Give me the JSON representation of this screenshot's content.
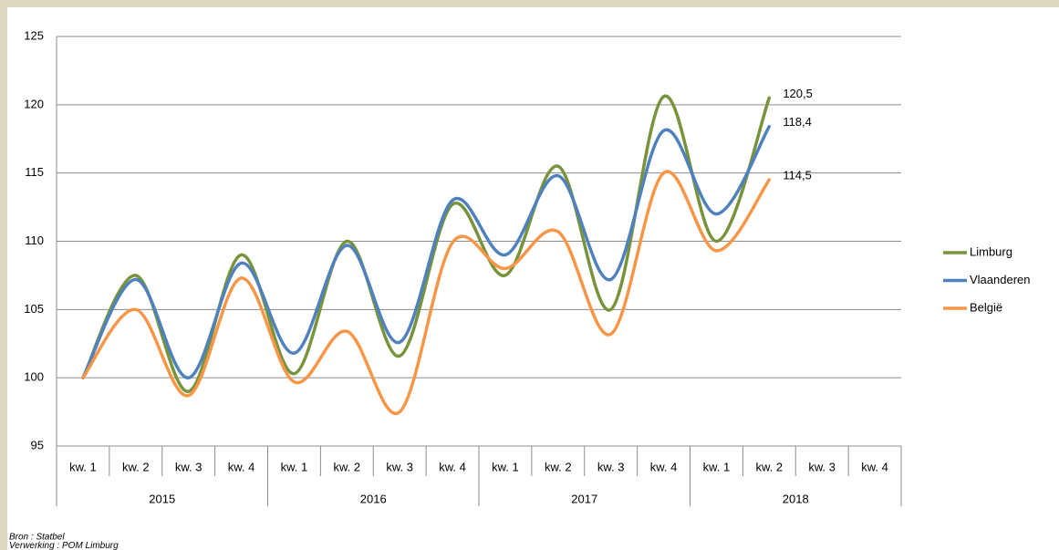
{
  "chart_data": {
    "type": "line",
    "categories": [
      "kw. 1",
      "kw. 2",
      "kw. 3",
      "kw. 4",
      "kw. 1",
      "kw. 2",
      "kw. 3",
      "kw. 4",
      "kw. 1",
      "kw. 2",
      "kw. 3",
      "kw. 4",
      "kw. 1",
      "kw. 2",
      "kw. 3",
      "kw. 4"
    ],
    "groups": [
      "2015",
      "2016",
      "2017",
      "2018"
    ],
    "series": [
      {
        "name": "Limburg",
        "color": "#77933c",
        "values": [
          100,
          107.5,
          99,
          109,
          100.3,
          110,
          101.6,
          112.7,
          107.5,
          115.5,
          105,
          120.6,
          110,
          120.5,
          null,
          null
        ],
        "value_labels": [
          null,
          null,
          null,
          null,
          null,
          null,
          null,
          null,
          null,
          null,
          null,
          null,
          null,
          "120,5",
          null,
          null
        ]
      },
      {
        "name": "Vlaanderen",
        "color": "#4f81bd",
        "values": [
          100,
          107.2,
          100,
          108.4,
          101.8,
          109.7,
          102.6,
          113,
          109,
          114.8,
          107.2,
          118.1,
          112,
          118.4,
          null,
          null
        ],
        "value_labels": [
          null,
          null,
          null,
          null,
          null,
          null,
          null,
          null,
          null,
          null,
          null,
          null,
          null,
          "118,4",
          null,
          null
        ]
      },
      {
        "name": "België",
        "color": "#f79646",
        "values": [
          100,
          105,
          98.7,
          107.3,
          99.7,
          103.4,
          97.5,
          109.9,
          108,
          110.7,
          103.2,
          115,
          109.3,
          114.5,
          null,
          null
        ],
        "value_labels": [
          null,
          null,
          null,
          null,
          null,
          null,
          null,
          null,
          null,
          null,
          null,
          null,
          null,
          "114,5",
          null,
          null
        ]
      }
    ],
    "ylim": [
      95,
      125
    ],
    "yticks": [
      95,
      100,
      105,
      110,
      115,
      120,
      125
    ],
    "grid": true,
    "legend": "right",
    "notes": [
      "Bron : Statbel",
      "Verwerking : POM Limburg"
    ]
  }
}
